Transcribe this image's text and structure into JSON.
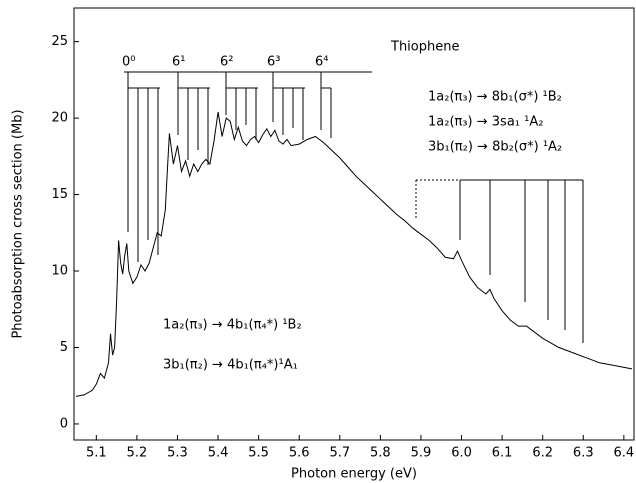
{
  "chart_data": {
    "type": "line",
    "xlabel": "Photon energy (eV)",
    "ylabel": "Photoabsorption cross section (Mb)",
    "xlim": [
      5.045,
      6.425
    ],
    "ylim": [
      -1.05,
      27.2
    ],
    "xticks": [
      5.1,
      5.2,
      5.3,
      5.4,
      5.5,
      5.6,
      5.7,
      5.8,
      5.9,
      {
        "value": 6,
        "label": "6.0"
      },
      6.1,
      6.2,
      6.3,
      6.4
    ],
    "yticks": [
      0,
      5,
      10,
      15,
      20,
      25
    ],
    "x": [
      5.05,
      5.07,
      5.09,
      5.1,
      5.11,
      5.12,
      5.13,
      5.135,
      5.14,
      5.145,
      5.15,
      5.155,
      5.16,
      5.165,
      5.17,
      5.175,
      5.18,
      5.19,
      5.2,
      5.21,
      5.22,
      5.23,
      5.24,
      5.25,
      5.26,
      5.27,
      5.275,
      5.28,
      5.29,
      5.3,
      5.31,
      5.32,
      5.33,
      5.34,
      5.35,
      5.36,
      5.37,
      5.38,
      5.39,
      5.4,
      5.41,
      5.42,
      5.43,
      5.44,
      5.45,
      5.46,
      5.47,
      5.48,
      5.49,
      5.5,
      5.51,
      5.52,
      5.53,
      5.54,
      5.55,
      5.56,
      5.57,
      5.58,
      5.6,
      5.62,
      5.64,
      5.66,
      5.68,
      5.7,
      5.72,
      5.74,
      5.76,
      5.78,
      5.8,
      5.82,
      5.84,
      5.86,
      5.88,
      5.9,
      5.92,
      5.94,
      5.96,
      5.98,
      5.99,
      6.0,
      6.02,
      6.04,
      6.06,
      6.07,
      6.08,
      6.1,
      6.12,
      6.14,
      6.16,
      6.18,
      6.2,
      6.22,
      6.24,
      6.26,
      6.28,
      6.3,
      6.32,
      6.34,
      6.36,
      6.38,
      6.4,
      6.42
    ],
    "series": [
      {
        "color": "#000000",
        "values": [
          1.8,
          1.9,
          2.2,
          2.6,
          3.3,
          3.0,
          4.0,
          5.9,
          4.5,
          5.0,
          8.0,
          12.0,
          10.5,
          9.8,
          11.0,
          11.8,
          10.0,
          9.2,
          9.6,
          10.4,
          10.0,
          10.5,
          11.5,
          12.5,
          12.3,
          14.0,
          16.5,
          19.0,
          17.0,
          18.2,
          16.5,
          17.2,
          16.2,
          17.0,
          16.5,
          17.0,
          17.3,
          17.0,
          18.5,
          20.4,
          18.8,
          20.0,
          19.8,
          18.6,
          19.4,
          18.5,
          18.2,
          18.6,
          18.8,
          18.4,
          18.9,
          19.3,
          18.8,
          19.2,
          18.5,
          18.3,
          18.6,
          18.2,
          18.3,
          18.6,
          18.8,
          18.4,
          17.9,
          17.4,
          16.8,
          16.2,
          15.7,
          15.2,
          14.7,
          14.2,
          13.7,
          13.3,
          12.8,
          12.4,
          12.0,
          11.5,
          10.9,
          10.8,
          11.3,
          10.7,
          9.6,
          8.9,
          8.5,
          8.8,
          8.2,
          7.4,
          6.8,
          6.4,
          6.4,
          6.0,
          5.6,
          5.3,
          5.0,
          4.8,
          4.6,
          4.4,
          4.2,
          4.0,
          3.9,
          3.8,
          3.7,
          3.6
        ]
      }
    ],
    "annotations": [
      "Thiophene",
      "1a₂(π₃) → 8b₁(σ*) ¹B₂",
      "1a₂(π₃) → 3sa₁ ¹A₂",
      "3b₁(π₂) → 8b₂(σ*) ¹A₂",
      "1a₂(π₃) → 4b₁(π₄*) ¹B₂",
      "3b₁(π₂) → 4b₁(π₄*)¹A₁"
    ],
    "progression_labels": [
      "0⁰",
      "6¹",
      "6²",
      "6³",
      "6⁴"
    ]
  }
}
